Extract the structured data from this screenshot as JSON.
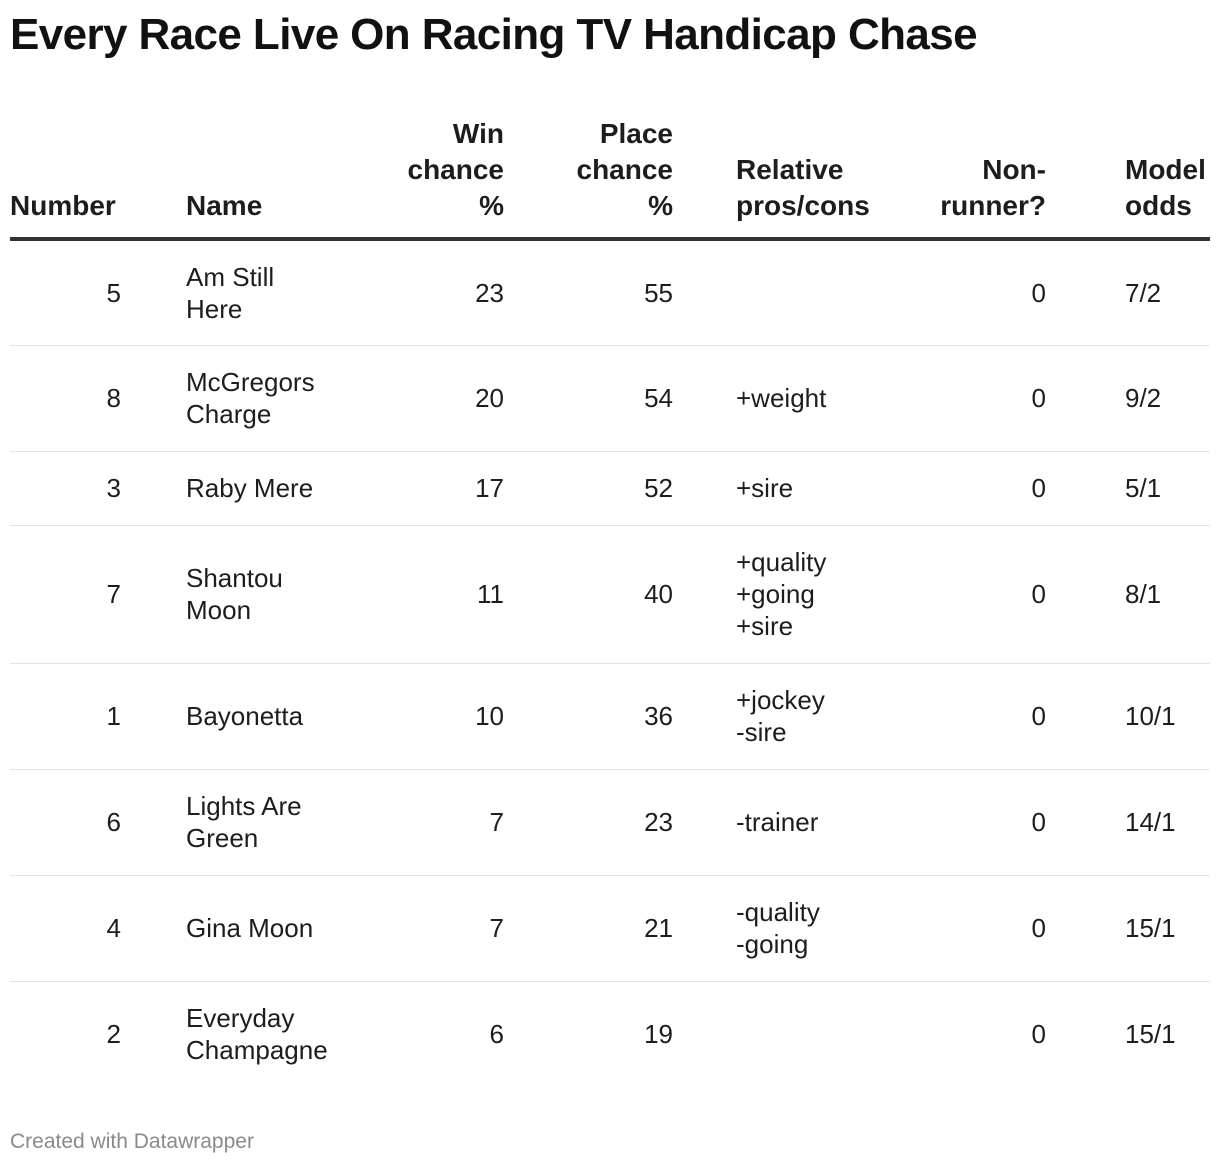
{
  "title": "Every Race Live On Racing TV Handicap Chase",
  "columns": {
    "number": "Number",
    "name": "Name",
    "win": "Win\nchance\n%",
    "place": "Place\nchance\n%",
    "notes": "Relative\npros/cons",
    "nonrunner": "Non-\nrunner?",
    "odds": "Model\nodds"
  },
  "chart_data": {
    "type": "table",
    "title": "Every Race Live On Racing TV Handicap Chase",
    "headers": [
      "Number",
      "Name",
      "Win chance %",
      "Place chance %",
      "Relative pros/cons",
      "Non-runner?",
      "Model odds"
    ],
    "rows": [
      {
        "number": "5",
        "name": "Am Still\nHere",
        "win": "23",
        "place": "55",
        "notes": "",
        "nonrunner": "0",
        "odds": "7/2"
      },
      {
        "number": "8",
        "name": "McGregors\nCharge",
        "win": "20",
        "place": "54",
        "notes": "+weight",
        "nonrunner": "0",
        "odds": "9/2"
      },
      {
        "number": "3",
        "name": "Raby Mere",
        "win": "17",
        "place": "52",
        "notes": "+sire",
        "nonrunner": "0",
        "odds": "5/1"
      },
      {
        "number": "7",
        "name": "Shantou\nMoon",
        "win": "11",
        "place": "40",
        "notes": "+quality\n+going\n+sire",
        "nonrunner": "0",
        "odds": "8/1"
      },
      {
        "number": "1",
        "name": "Bayonetta",
        "win": "10",
        "place": "36",
        "notes": "+jockey\n-sire",
        "nonrunner": "0",
        "odds": "10/1"
      },
      {
        "number": "6",
        "name": "Lights Are\nGreen",
        "win": "7",
        "place": "23",
        "notes": "-trainer",
        "nonrunner": "0",
        "odds": "14/1"
      },
      {
        "number": "4",
        "name": "Gina Moon",
        "win": "7",
        "place": "21",
        "notes": "-quality\n-going",
        "nonrunner": "0",
        "odds": "15/1"
      },
      {
        "number": "2",
        "name": "Everyday\nChampagne",
        "win": "6",
        "place": "19",
        "notes": "",
        "nonrunner": "0",
        "odds": "15/1"
      }
    ]
  },
  "footer": "Created with Datawrapper"
}
